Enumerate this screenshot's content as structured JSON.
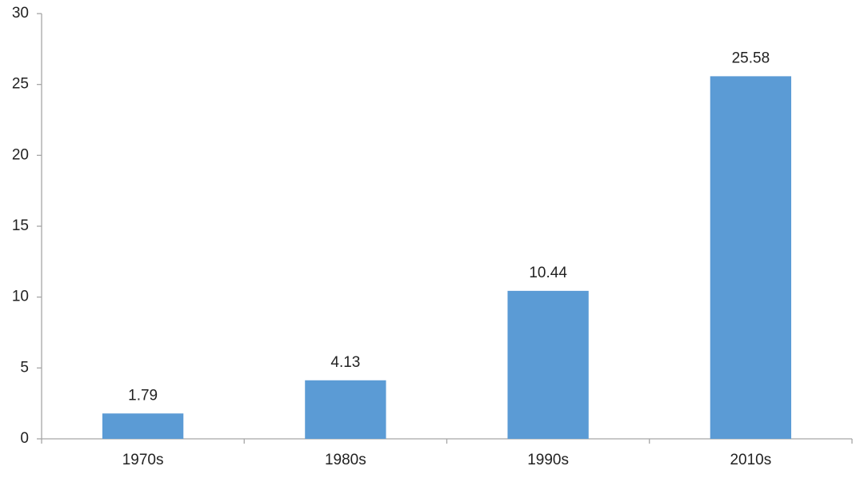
{
  "chart_data": {
    "type": "bar",
    "categories": [
      "1970s",
      "1980s",
      "1990s",
      "2010s"
    ],
    "values": [
      1.79,
      4.13,
      10.44,
      25.58
    ],
    "color": "#5b9bd5",
    "ylim": [
      0,
      30
    ],
    "yticks": [
      0,
      5,
      10,
      15,
      20,
      25,
      30
    ],
    "grid": false
  }
}
